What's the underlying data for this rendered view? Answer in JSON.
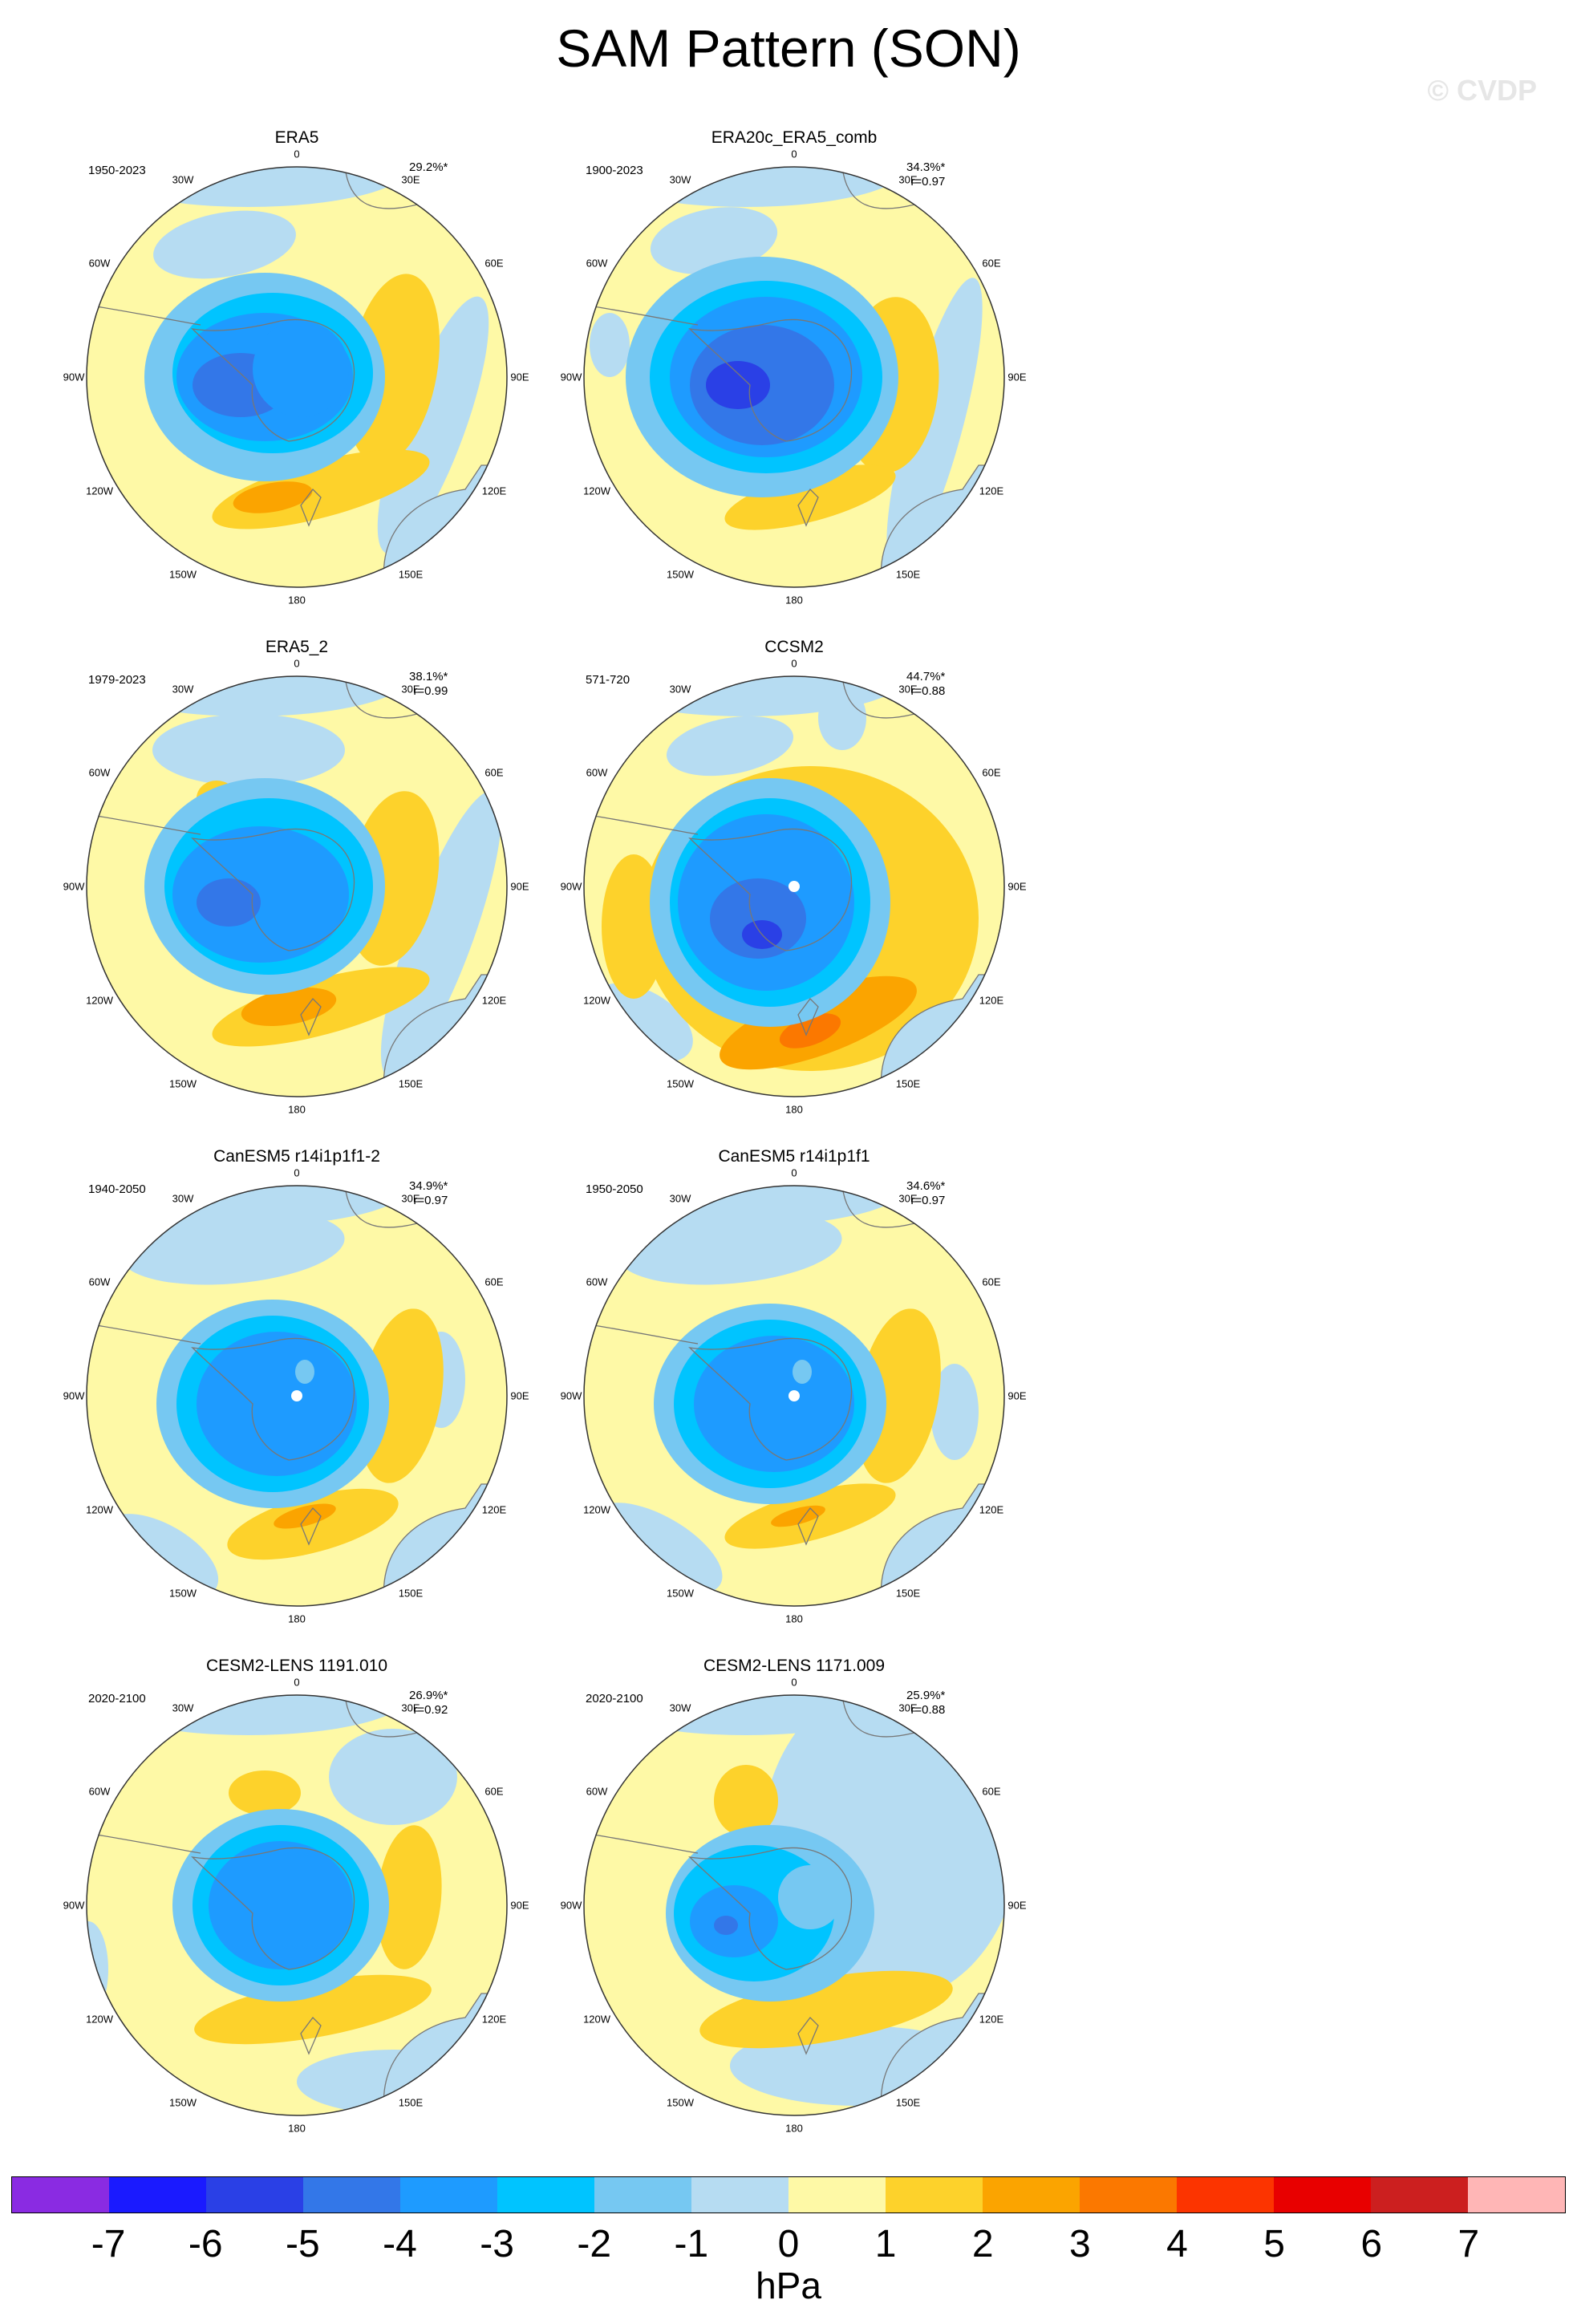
{
  "title": "SAM Pattern (SON)",
  "watermark": "© CVDP",
  "lon_labels": [
    "0",
    "30E",
    "60E",
    "90E",
    "120E",
    "150E",
    "180",
    "150W",
    "120W",
    "90W",
    "60W",
    "30W"
  ],
  "colors": {
    "ocean_base": "#fef9a6",
    "land_line": "#777777"
  },
  "panels": [
    {
      "name": "ERA5",
      "period": "1950-2023",
      "pct": "29.2%*",
      "r": "",
      "centroid": false
    },
    {
      "name": "ERA20c_ERA5_comb",
      "period": "1900-2023",
      "pct": "34.3%*",
      "r": "r=0.97",
      "centroid": false
    },
    {
      "name": "ERA5_2",
      "period": "1979-2023",
      "pct": "38.1%*",
      "r": "r=0.99",
      "centroid": false
    },
    {
      "name": "CCSM2",
      "period": "571-720",
      "pct": "44.7%*",
      "r": "r=0.88",
      "centroid": true
    },
    {
      "name": "CanESM5 r14i1p1f1-2",
      "period": "1940-2050",
      "pct": "34.9%*",
      "r": "r=0.97",
      "centroid": true
    },
    {
      "name": "CanESM5 r14i1p1f1",
      "period": "1950-2050",
      "pct": "34.6%*",
      "r": "r=0.97",
      "centroid": true
    },
    {
      "name": "CESM2-LENS 1191.010",
      "period": "2020-2100",
      "pct": "26.9%*",
      "r": "r=0.92",
      "centroid": false
    },
    {
      "name": "CESM2-LENS 1171.009",
      "period": "2020-2100",
      "pct": "25.9%*",
      "r": "r=0.88",
      "centroid": false
    }
  ],
  "colorbar": {
    "unit": "hPa",
    "ticks": [
      "-7",
      "-6",
      "-5",
      "-4",
      "-3",
      "-2",
      "-1",
      "0",
      "1",
      "2",
      "3",
      "4",
      "5",
      "6",
      "7"
    ],
    "colors": [
      "#8a2be2",
      "#1a1aff",
      "#2a40e6",
      "#3377e8",
      "#1e9bff",
      "#00c4ff",
      "#76c8f2",
      "#b6dcf2",
      "#fef9a6",
      "#fdd22b",
      "#fba400",
      "#fb7800",
      "#fc3400",
      "#e80000",
      "#cc1f1f",
      "#ffb6b6"
    ]
  }
}
